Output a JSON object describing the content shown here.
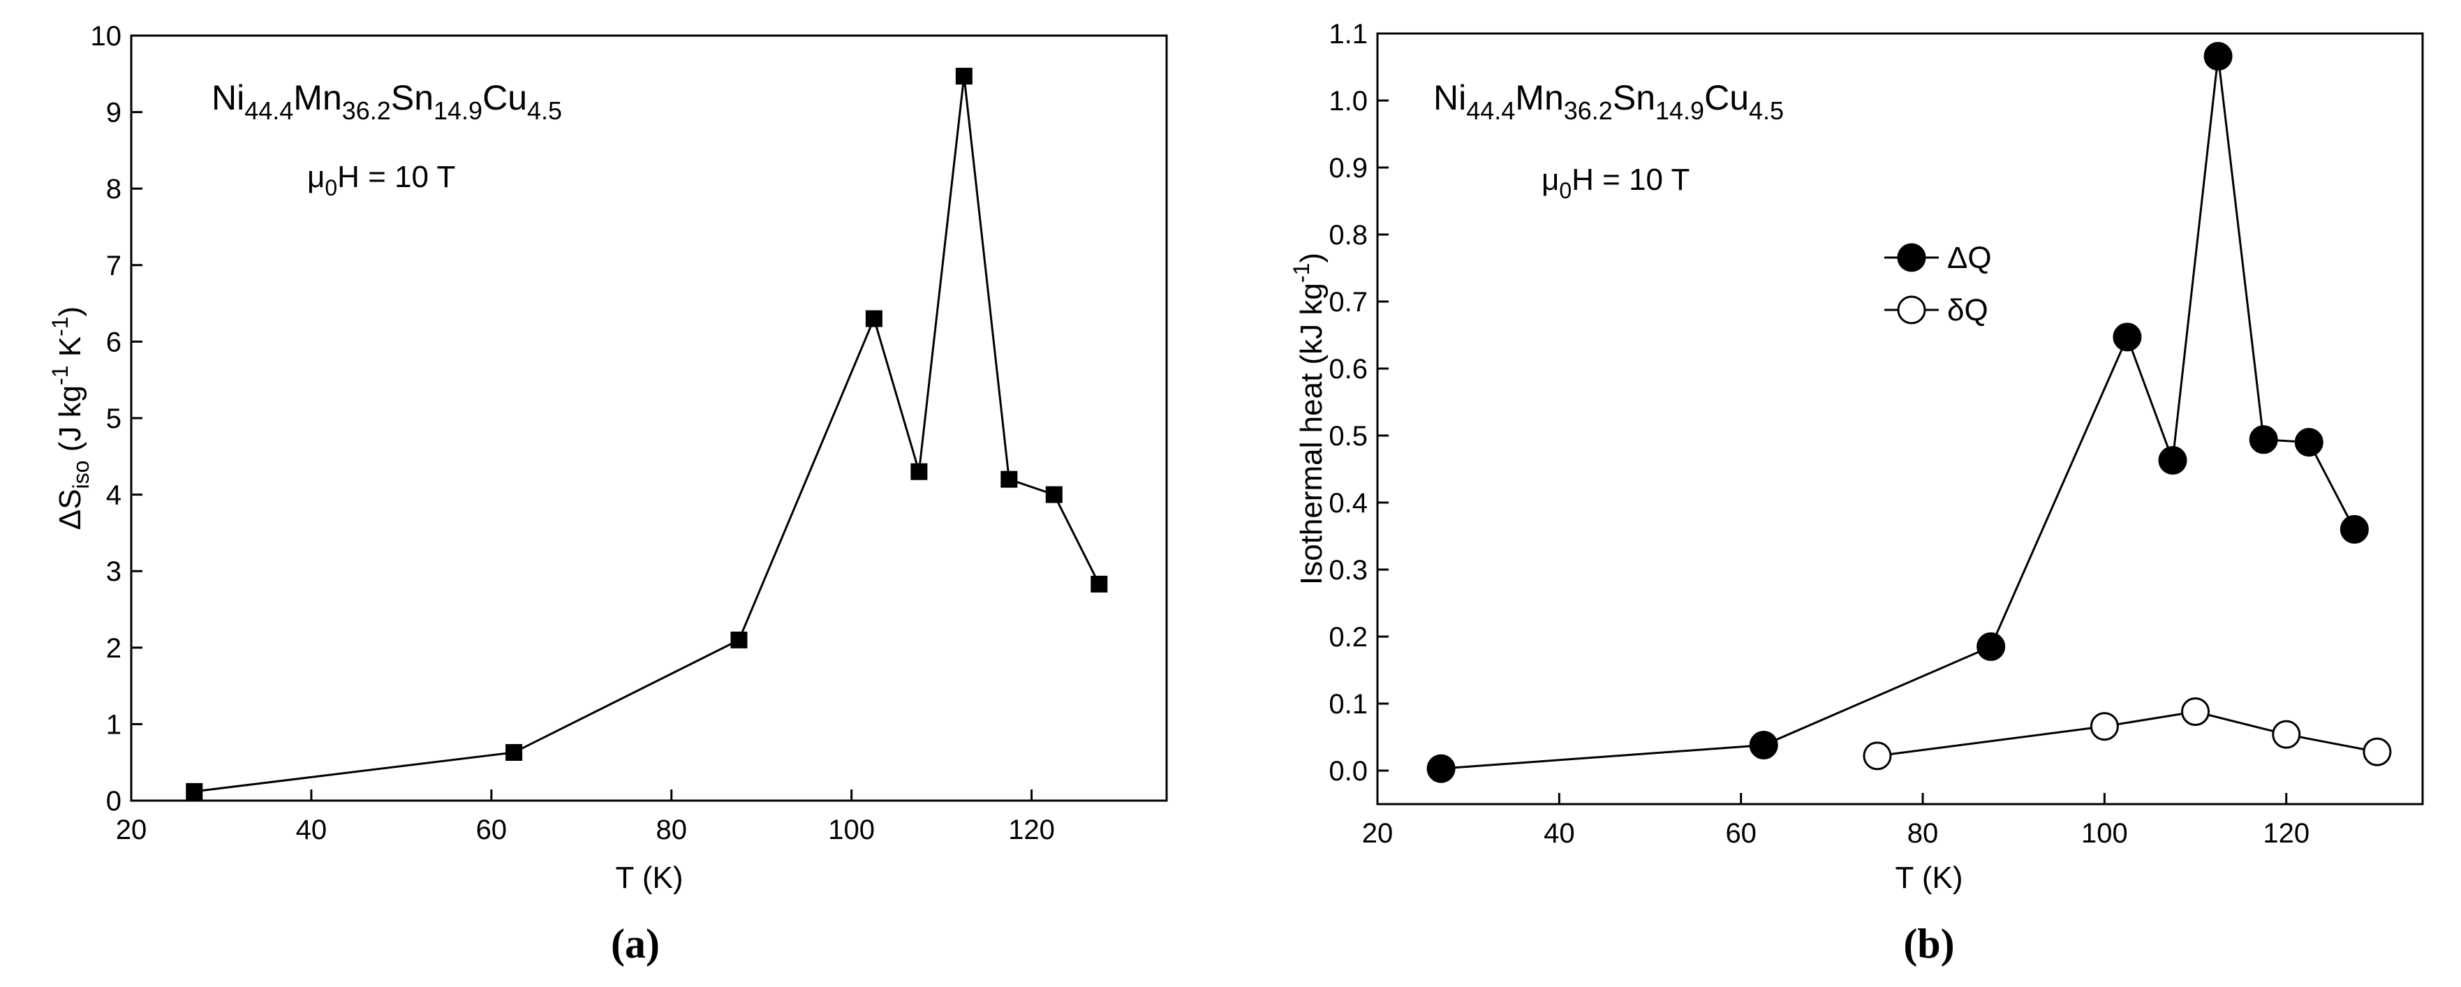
{
  "chart_data": [
    {
      "panel_label": "(a)",
      "type": "line",
      "title": "",
      "annotation_formula": {
        "base": [
          "Ni",
          "Mn",
          "Sn",
          "Cu"
        ],
        "subs": [
          "44.4",
          "36.2",
          "14.9",
          "4.5"
        ]
      },
      "annotation_field": {
        "prefix": "μ",
        "sub": "0",
        "suffix": "H = 10 T"
      },
      "xlabel": "T (K)",
      "ylabel": {
        "delta": "ΔS",
        "sub": "iso",
        "unit_pre": " (J kg",
        "sup1": "-1",
        "unit_mid": " K",
        "sup2": "-1",
        "unit_post": ")"
      },
      "xlim": [
        20,
        135
      ],
      "ylim": [
        0,
        10
      ],
      "xticks": [
        20,
        40,
        60,
        80,
        100,
        120
      ],
      "yticks": [
        0,
        1,
        2,
        3,
        4,
        5,
        6,
        7,
        8,
        9,
        10
      ],
      "series": [
        {
          "marker": "square-filled",
          "x": [
            27,
            62.5,
            87.5,
            102.5,
            107.5,
            112.5,
            117.5,
            122.5,
            127.5
          ],
          "y": [
            0.12,
            0.63,
            2.1,
            6.3,
            4.3,
            9.47,
            4.2,
            4.0,
            2.83
          ]
        }
      ]
    },
    {
      "panel_label": "(b)",
      "type": "line",
      "title": "",
      "annotation_formula": {
        "base": [
          "Ni",
          "Mn",
          "Sn",
          "Cu"
        ],
        "subs": [
          "44.4",
          "36.2",
          "14.9",
          "4.5"
        ]
      },
      "annotation_field": {
        "prefix": "μ",
        "sub": "0",
        "suffix": "H = 10 T"
      },
      "xlabel": "T (K)",
      "ylabel": {
        "text": "Isothermal heat (kJ kg",
        "sup": "-1",
        "post": ")"
      },
      "xlim": [
        20,
        135
      ],
      "ylim": [
        -0.05,
        1.1
      ],
      "xticks": [
        20,
        40,
        60,
        80,
        100,
        120
      ],
      "yticks": [
        "0.0",
        "0.1",
        "0.2",
        "0.3",
        "0.4",
        "0.5",
        "0.6",
        "0.7",
        "0.8",
        "0.9",
        "1.0",
        "1.1"
      ],
      "legend_position": "upper-center",
      "series": [
        {
          "name": "ΔQ",
          "marker": "circle-filled",
          "x": [
            27,
            62.5,
            87.5,
            102.5,
            107.5,
            112.5,
            117.5,
            122.5,
            127.5
          ],
          "y": [
            0.003,
            0.038,
            0.185,
            0.647,
            0.463,
            1.066,
            0.494,
            0.49,
            0.36
          ]
        },
        {
          "name": "δQ",
          "marker": "circle-open",
          "x": [
            75,
            100,
            110,
            120,
            130
          ],
          "y": [
            0.022,
            0.066,
            0.088,
            0.054,
            0.028
          ]
        }
      ]
    }
  ]
}
